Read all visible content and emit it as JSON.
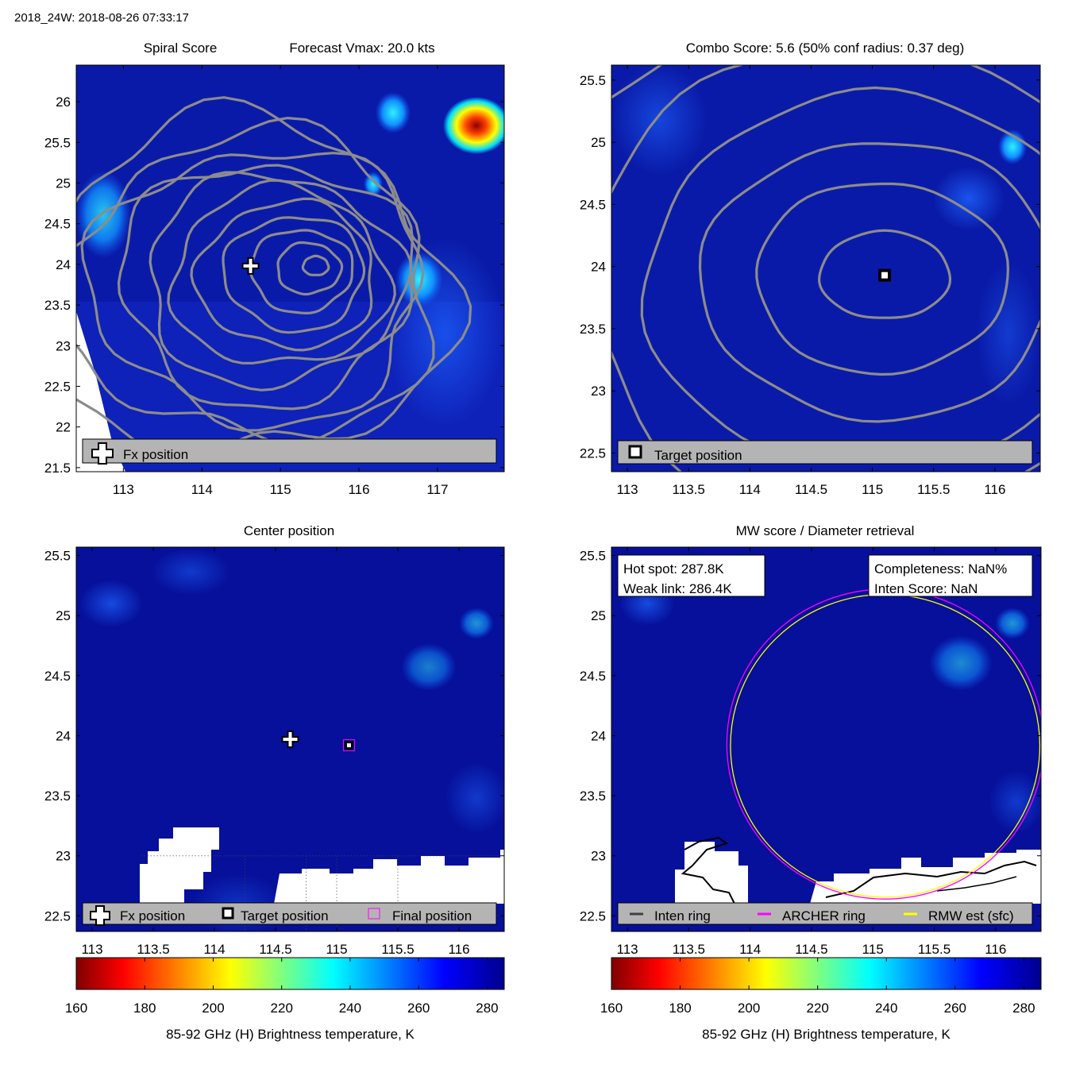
{
  "figure_title": "2018_24W: 2018-08-26 07:33:17",
  "chart_data": [
    {
      "id": "spiral",
      "type": "heatmap",
      "title_left": "Spiral Score",
      "title_right": "Forecast Vmax: 20.0 kts",
      "xlim": [
        112.4,
        117.85
      ],
      "ylim": [
        21.45,
        26.45
      ],
      "xticks": [
        113,
        114,
        115,
        116,
        117
      ],
      "yticks": [
        21.5,
        22,
        22.5,
        23,
        23.5,
        24,
        24.5,
        25,
        25.5,
        26
      ],
      "contour_center": [
        115.45,
        23.98
      ],
      "markers": [
        {
          "kind": "fx-position",
          "x": 114.62,
          "y": 23.98
        }
      ],
      "legend": {
        "placement": "bottom",
        "items": [
          "Fx position"
        ]
      }
    },
    {
      "id": "combo",
      "type": "heatmap",
      "title": "Combo Score: 5.6  (50% conf radius: 0.37 deg)",
      "xlim": [
        112.87,
        116.37
      ],
      "ylim": [
        22.35,
        25.62
      ],
      "xticks": [
        113,
        113.5,
        114,
        114.5,
        115,
        115.5,
        116
      ],
      "yticks": [
        22.5,
        23,
        23.5,
        24,
        24.5,
        25,
        25.5
      ],
      "contour_center": [
        115.1,
        23.93
      ],
      "markers": [
        {
          "kind": "target-position",
          "x": 115.1,
          "y": 23.93
        }
      ],
      "legend": {
        "placement": "bottom",
        "items": [
          "Target position"
        ]
      }
    },
    {
      "id": "center",
      "type": "heatmap",
      "title": "Center position",
      "xlim": [
        112.87,
        116.37
      ],
      "ylim": [
        22.37,
        25.57
      ],
      "xticks": [
        113,
        113.5,
        114,
        114.5,
        115,
        115.5,
        116
      ],
      "yticks": [
        22.5,
        23,
        23.5,
        24,
        24.5,
        25,
        25.5
      ],
      "markers": [
        {
          "kind": "fx-position",
          "x": 114.62,
          "y": 23.97
        },
        {
          "kind": "target-position",
          "x": 115.1,
          "y": 23.92
        },
        {
          "kind": "final-position",
          "x": 115.1,
          "y": 23.92
        }
      ],
      "legend": {
        "placement": "bottom",
        "items": [
          "Fx position",
          "Target position",
          "Final position"
        ]
      },
      "colorbar": {
        "label": "85-92 GHz (H) Brightness temperature, K",
        "range": [
          160,
          285
        ],
        "ticks": [
          160,
          180,
          200,
          220,
          240,
          260,
          280
        ]
      }
    },
    {
      "id": "mw",
      "type": "heatmap",
      "title": "MW score / Diameter retrieval",
      "xlim": [
        112.87,
        116.37
      ],
      "ylim": [
        22.37,
        25.57
      ],
      "xticks": [
        113,
        113.5,
        114,
        114.5,
        115,
        115.5,
        116
      ],
      "yticks": [
        22.5,
        23,
        23.5,
        24,
        24.5,
        25,
        25.5
      ],
      "rings": {
        "center": [
          115.1,
          23.93
        ],
        "archer_radius_deg": 1.29,
        "rmw_radius_deg": 1.26
      },
      "info_left": [
        "Hot spot: 287.8K",
        "Weak link: 286.4K"
      ],
      "info_right": [
        "Completeness: NaN%",
        "Inten Score: NaN"
      ],
      "legend": {
        "placement": "bottom",
        "items": [
          "Inten ring",
          "ARCHER ring",
          "RMW est (sfc)"
        ]
      },
      "colorbar": {
        "label": "85-92 GHz (H) Brightness temperature, K",
        "range": [
          160,
          285
        ],
        "ticks": [
          160,
          180,
          200,
          220,
          240,
          260,
          280
        ]
      }
    }
  ],
  "colors": {
    "background_field": "#0a1aa8",
    "background_field_dark": "#06109a",
    "contour": "#8c8c8c",
    "legend_bg": "#b4b4b4",
    "archer_ring": "#ff00ff",
    "rmw_ring": "#ffff00",
    "colormap": [
      "#800000",
      "#ff0000",
      "#ffff00",
      "#00ffff",
      "#0000ff",
      "#00008f"
    ]
  }
}
